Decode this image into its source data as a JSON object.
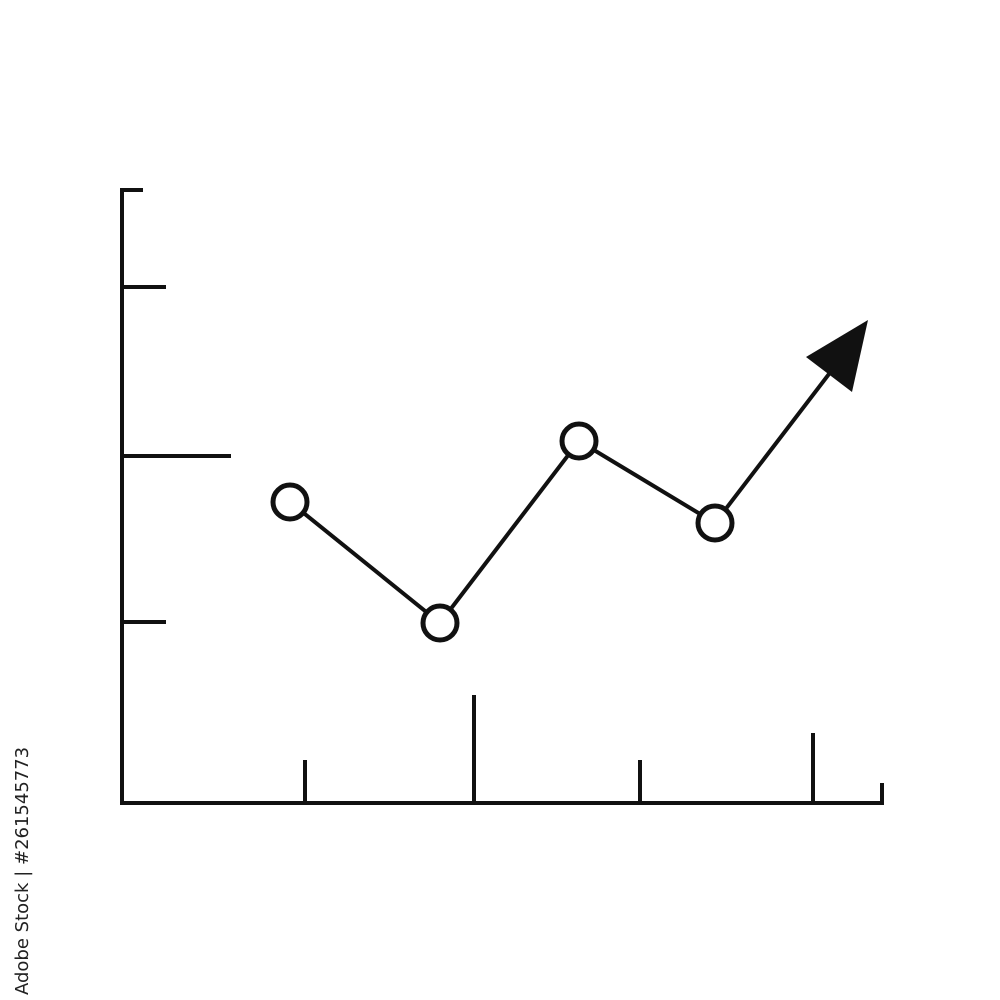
{
  "watermark": {
    "stock_id": "Adobe Stock | #261545773"
  },
  "colors": {
    "stroke": "#111111",
    "background": "#ffffff"
  },
  "icon": "line-chart-with-upward-arrow-icon"
}
